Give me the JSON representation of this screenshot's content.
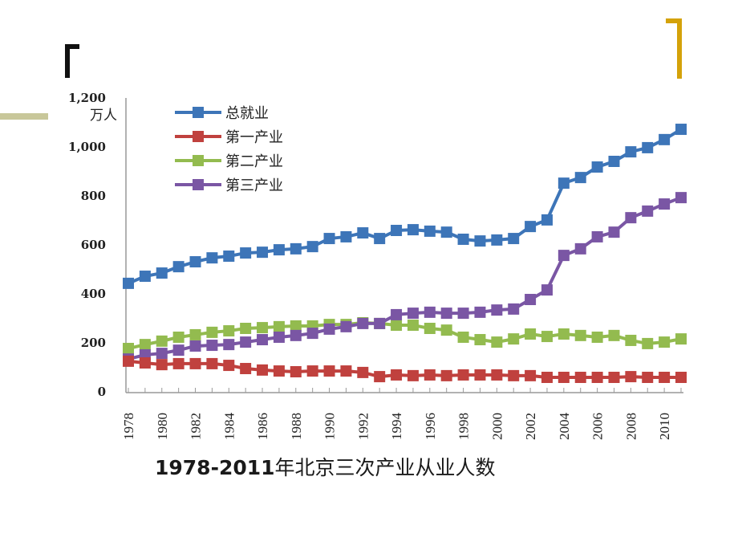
{
  "caption": {
    "years": "1978-2011",
    "text": "年北京三次产业从业人数"
  },
  "chart_data": {
    "type": "line",
    "title": "1978-2011年北京三次产业从业人数",
    "xlabel": "",
    "ylabel": "万人",
    "ylim": [
      0,
      1200
    ],
    "yticks": [
      0,
      200,
      400,
      600,
      800,
      1000,
      1200
    ],
    "ytick_labels": [
      "0",
      "200",
      "400",
      "600",
      "800",
      "1,000",
      "1,200"
    ],
    "xtick_labels": [
      "1978",
      "1980",
      "1982",
      "1984",
      "1986",
      "1988",
      "1990",
      "1992",
      "1994",
      "1996",
      "1998",
      "2000",
      "2002",
      "2004",
      "2006",
      "2008",
      "2010"
    ],
    "grid": false,
    "legend_position": "top-left",
    "x": [
      1978,
      1979,
      1980,
      1981,
      1982,
      1983,
      1984,
      1985,
      1986,
      1987,
      1988,
      1989,
      1990,
      1991,
      1992,
      1993,
      1994,
      1995,
      1996,
      1997,
      1998,
      1999,
      2000,
      2001,
      2002,
      2003,
      2004,
      2005,
      2006,
      2007,
      2008,
      2009,
      2010,
      2011
    ],
    "series": [
      {
        "name": "总就业",
        "color": "#3d75b8",
        "values": [
          443,
          472,
          485,
          511,
          531,
          547,
          554,
          567,
          570,
          580,
          584,
          593,
          626,
          633,
          649,
          626,
          659,
          662,
          656,
          652,
          623,
          616,
          620,
          626,
          675,
          702,
          852,
          875,
          918,
          941,
          980,
          997,
          1030,
          1072
        ]
      },
      {
        "name": "第一产业",
        "color": "#c0413e",
        "values": [
          125,
          118,
          111,
          115,
          115,
          115,
          108,
          95,
          89,
          85,
          82,
          85,
          85,
          85,
          79,
          62,
          69,
          66,
          69,
          66,
          69,
          69,
          69,
          66,
          66,
          59,
          59,
          59,
          59,
          59,
          62,
          59,
          59,
          59
        ]
      },
      {
        "name": "第二产业",
        "color": "#93bb4f",
        "values": [
          177,
          193,
          207,
          223,
          233,
          243,
          249,
          259,
          262,
          266,
          269,
          269,
          275,
          275,
          282,
          279,
          272,
          272,
          259,
          252,
          223,
          213,
          203,
          216,
          236,
          226,
          236,
          230,
          223,
          230,
          210,
          197,
          203,
          216
        ]
      },
      {
        "name": "第三产业",
        "color": "#7a56a4",
        "values": [
          134,
          151,
          157,
          170,
          187,
          190,
          193,
          203,
          213,
          223,
          230,
          239,
          256,
          266,
          279,
          279,
          315,
          321,
          325,
          321,
          321,
          325,
          334,
          338,
          377,
          416,
          557,
          584,
          633,
          652,
          711,
          738,
          767,
          793
        ]
      }
    ]
  }
}
